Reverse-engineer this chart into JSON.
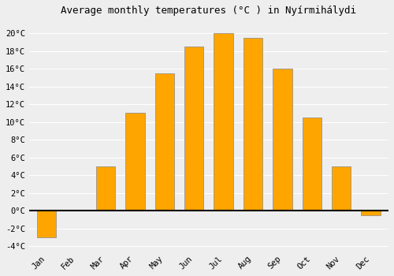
{
  "title": "Average monthly temperatures (°C ) in Nyírmihálydi",
  "months": [
    "Jan",
    "Feb",
    "Mar",
    "Apr",
    "May",
    "Jun",
    "Jul",
    "Aug",
    "Sep",
    "Oct",
    "Nov",
    "Dec"
  ],
  "temperatures": [
    -3.0,
    0.0,
    5.0,
    11.0,
    15.5,
    18.5,
    20.0,
    19.5,
    16.0,
    10.5,
    5.0,
    -0.5
  ],
  "bar_color": "#FFA500",
  "edge_color": "#888888",
  "background_color": "#eeeeee",
  "grid_color": "#ffffff",
  "ylim": [
    -4.5,
    21.5
  ],
  "yticks": [
    -4,
    -2,
    0,
    2,
    4,
    6,
    8,
    10,
    12,
    14,
    16,
    18,
    20
  ],
  "title_fontsize": 9,
  "tick_fontsize": 7.5,
  "zero_line_color": "#000000",
  "bar_width": 0.65
}
